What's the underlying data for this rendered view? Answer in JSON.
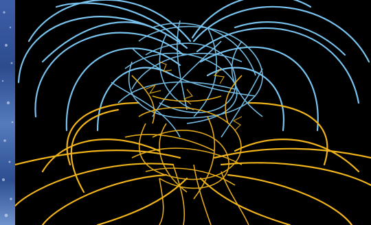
{
  "image": {
    "colors": {
      "background": "#000000",
      "outward_field_lines": "#79c4ef",
      "inward_field_lines": "#f1b51b",
      "left_strip": "#3a5ea8"
    }
  }
}
